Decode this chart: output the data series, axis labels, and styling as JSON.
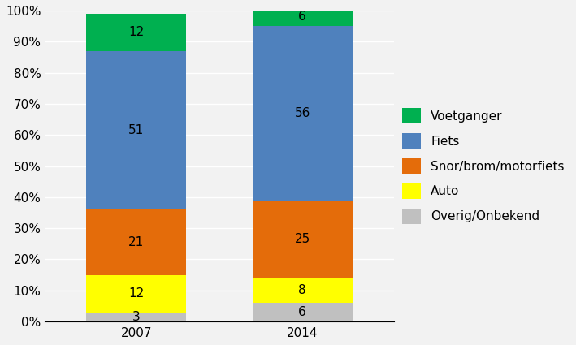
{
  "categories": [
    "2007",
    "2014"
  ],
  "series": [
    {
      "label": "Overig/Onbekend",
      "values": [
        3,
        6
      ],
      "color": "#c0c0c0"
    },
    {
      "label": "Auto",
      "values": [
        12,
        8
      ],
      "color": "#ffff00"
    },
    {
      "label": "Snor/brom/motorfiets",
      "values": [
        21,
        25
      ],
      "color": "#e46c0a"
    },
    {
      "label": "Fiets",
      "values": [
        51,
        56
      ],
      "color": "#4f81bd"
    },
    {
      "label": "Voetganger",
      "values": [
        12,
        6
      ],
      "color": "#00b050"
    }
  ],
  "yticks": [
    0,
    10,
    20,
    30,
    40,
    50,
    60,
    70,
    80,
    90,
    100
  ],
  "ylim": [
    0,
    100
  ],
  "bar_width": 0.6,
  "label_fontsize": 11,
  "tick_fontsize": 11,
  "legend_fontsize": 11,
  "fig_width": 7.09,
  "fig_height": 4.25,
  "fig_bg_color": "#f2f2f2",
  "plot_bg_color": "#f2f2f2"
}
